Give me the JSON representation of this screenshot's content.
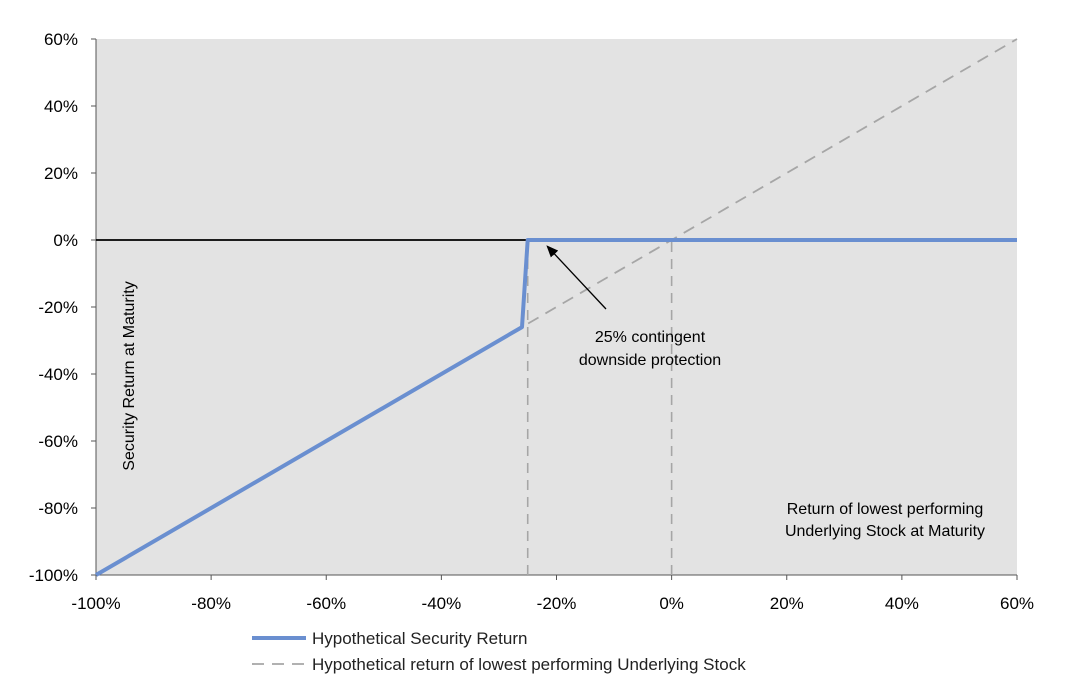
{
  "chart_data": {
    "type": "line",
    "title": "",
    "xlabel": "Return of lowest performing Underlying Stock at Maturity",
    "xlabel_lines": [
      "Return of lowest performing",
      "Underlying Stock at Maturity"
    ],
    "ylabel": "Security Return at Maturity",
    "xlim": [
      -100,
      60
    ],
    "ylim": [
      -100,
      60
    ],
    "x_ticks": [
      -100,
      -80,
      -60,
      -40,
      -20,
      0,
      20,
      40,
      60
    ],
    "y_ticks": [
      -100,
      -80,
      -60,
      -40,
      -20,
      0,
      20,
      40,
      60
    ],
    "x_tick_labels": [
      "-100%",
      "-80%",
      "-60%",
      "-40%",
      "-20%",
      "0%",
      "20%",
      "40%",
      "60%"
    ],
    "y_tick_labels": [
      "-100%",
      "-80%",
      "-60%",
      "-40%",
      "-20%",
      "0%",
      "20%",
      "40%",
      "60%"
    ],
    "grid": false,
    "legend_position": "bottom",
    "series": [
      {
        "name": "Hypothetical Security Return",
        "color": "#6a8fd0",
        "style": "solid",
        "x": [
          -100,
          -26,
          -25,
          60
        ],
        "y": [
          -100,
          -26,
          0,
          0
        ]
      },
      {
        "name": "Hypothetical return of lowest performing Underlying Stock",
        "color": "#a6a6a6",
        "style": "dashed",
        "x": [
          -100,
          60
        ],
        "y": [
          -100,
          60
        ]
      }
    ],
    "reference_lines": [
      {
        "orientation": "vertical",
        "x": -25,
        "y_from": -100,
        "y_to": 0,
        "style": "dashed",
        "color": "#a6a6a6"
      },
      {
        "orientation": "vertical",
        "x": 0,
        "y_from": -100,
        "y_to": 0,
        "style": "dashed",
        "color": "#a6a6a6"
      },
      {
        "orientation": "horizontal",
        "y": 0,
        "style": "solid",
        "color": "#000000"
      }
    ],
    "annotations": [
      {
        "lines": [
          "25% contingent",
          "downside protection"
        ],
        "arrow_to": {
          "x": -25,
          "y": -5
        }
      }
    ],
    "plot_background": "#e3e3e3"
  }
}
